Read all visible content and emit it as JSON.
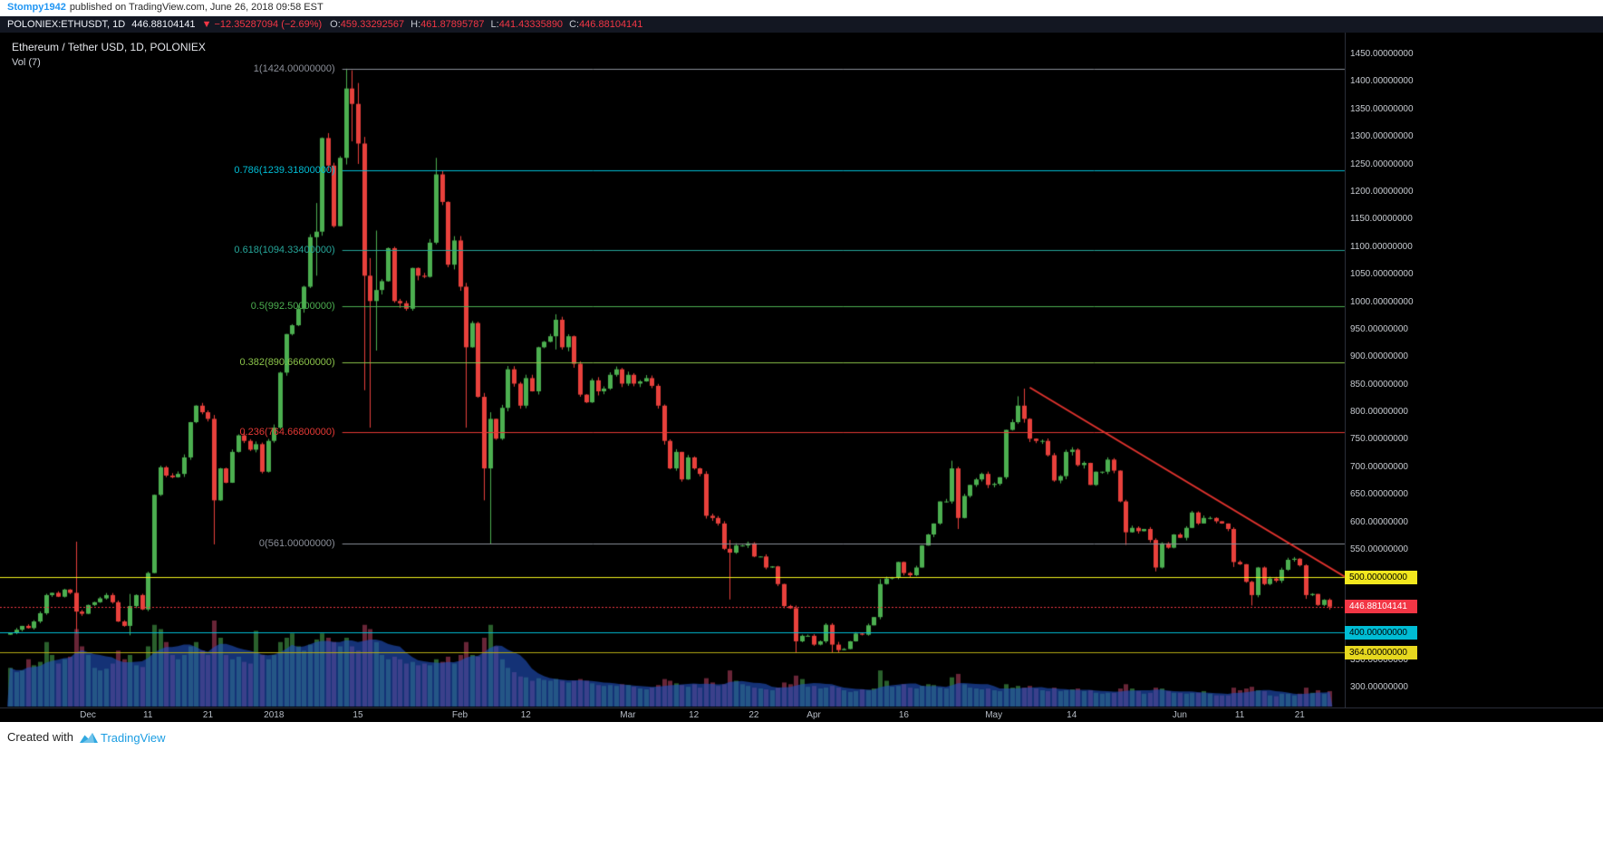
{
  "header": {
    "username": "Stompy1942",
    "published_text": "published on TradingView.com, June 26, 2018 09:58 EST"
  },
  "ticker": {
    "symbol_interval": "POLONIEX:ETHUSDT, 1D",
    "last": "446.88104141",
    "change": "▼ −12.35287094 (−2.69%)",
    "ohlc": [
      {
        "label": "O:",
        "value": "459.33292567"
      },
      {
        "label": "H:",
        "value": "461.87895787"
      },
      {
        "label": "L:",
        "value": "441.43335890"
      },
      {
        "label": "C:",
        "value": "446.88104141"
      }
    ]
  },
  "legend": {
    "title": "Ethereum / Tether USD, 1D, POLONIEX",
    "indicator": "Vol (7)"
  },
  "footer": {
    "created_with": "Created with",
    "brand": "TradingView"
  },
  "chart_data": {
    "type": "candlestick",
    "title": "Ethereum / Tether USD, 1D, POLONIEX",
    "symbol": "POLONIEX:ETHUSDT",
    "interval": "1D",
    "ma_period": 7,
    "colors": {
      "background": "#000000",
      "up": "#4caf50",
      "down": "#e8413c",
      "vol_up": "rgba(76,175,80,0.55)",
      "vol_down": "rgba(190,68,100,0.55)",
      "vol_ma_fill": "rgba(33,81,191,0.62)",
      "axis_border": "#2a2e39"
    },
    "y_axis": {
      "decimals": 8,
      "ticks": [
        1450,
        1400,
        1350,
        1300,
        1250,
        1200,
        1150,
        1100,
        1050,
        1000,
        950,
        900,
        850,
        800,
        750,
        700,
        650,
        600,
        550,
        500,
        450,
        400,
        350,
        300
      ]
    },
    "x_axis": {
      "labels": [
        {
          "text": "Dec",
          "index": 13
        },
        {
          "text": "11",
          "index": 23
        },
        {
          "text": "21",
          "index": 33
        },
        {
          "text": "2018",
          "index": 44
        },
        {
          "text": "15",
          "index": 58
        },
        {
          "text": "Feb",
          "index": 75
        },
        {
          "text": "12",
          "index": 86
        },
        {
          "text": "Mar",
          "index": 103
        },
        {
          "text": "12",
          "index": 114
        },
        {
          "text": "22",
          "index": 124
        },
        {
          "text": "Apr",
          "index": 134
        },
        {
          "text": "16",
          "index": 149
        },
        {
          "text": "May",
          "index": 164
        },
        {
          "text": "14",
          "index": 177
        },
        {
          "text": "Jun",
          "index": 195
        },
        {
          "text": "11",
          "index": 205
        },
        {
          "text": "21",
          "index": 215
        }
      ]
    },
    "candles": {
      "first_open": 396,
      "closes": [
        400,
        405,
        412,
        408,
        420,
        435,
        468,
        472,
        465,
        478,
        472,
        438,
        434,
        450,
        455,
        462,
        468,
        455,
        420,
        412,
        448,
        468,
        442,
        508,
        650,
        700,
        685,
        682,
        688,
        718,
        782,
        812,
        800,
        788,
        640,
        698,
        672,
        728,
        758,
        748,
        732,
        742,
        692,
        748,
        772,
        872,
        942,
        958,
        988,
        1028,
        1118,
        1128,
        1298,
        1248,
        1138,
        1262,
        1388,
        1360,
        1288,
        1048,
        1002,
        1022,
        1038,
        1098,
        1002,
        998,
        988,
        1062,
        1048,
        1046,
        1108,
        1232,
        1182,
        1068,
        1112,
        1028,
        918,
        962,
        828,
        698,
        788,
        752,
        808,
        878,
        852,
        812,
        862,
        838,
        918,
        928,
        938,
        968,
        918,
        938,
        888,
        832,
        818,
        858,
        838,
        843,
        868,
        878,
        852,
        868,
        852,
        856,
        862,
        848,
        812,
        748,
        698,
        728,
        678,
        718,
        698,
        688,
        612,
        608,
        598,
        552,
        545,
        558,
        558,
        562,
        538,
        538,
        518,
        520,
        488,
        448,
        444,
        384,
        394,
        394,
        378,
        384,
        414,
        378,
        368,
        370,
        384,
        398,
        396,
        413,
        428,
        488,
        498,
        500,
        528,
        508,
        504,
        518,
        558,
        578,
        598,
        638,
        638,
        698,
        608,
        648,
        668,
        678,
        688,
        668,
        670,
        682,
        768,
        782,
        812,
        788,
        752,
        748,
        748,
        722,
        676,
        684,
        728,
        732,
        704,
        708,
        668,
        692,
        692,
        714,
        694,
        638,
        582,
        590,
        584,
        588,
        568,
        518,
        562,
        554,
        578,
        572,
        590,
        618,
        598,
        608,
        608,
        602,
        598,
        588,
        528,
        524,
        492,
        468,
        518,
        488,
        498,
        494,
        514,
        532,
        534,
        522,
        468,
        470,
        450,
        459.33,
        446.88
      ],
      "volumes": [
        45,
        40,
        42,
        55,
        48,
        52,
        75,
        60,
        50,
        55,
        58,
        90,
        70,
        60,
        45,
        42,
        44,
        50,
        65,
        55,
        60,
        48,
        46,
        70,
        95,
        90,
        75,
        60,
        55,
        60,
        70,
        75,
        65,
        60,
        100,
        80,
        60,
        55,
        58,
        52,
        50,
        88,
        60,
        55,
        60,
        75,
        80,
        85,
        70,
        65,
        72,
        78,
        85,
        80,
        75,
        70,
        80,
        70,
        65,
        95,
        90,
        75,
        60,
        55,
        58,
        55,
        50,
        52,
        48,
        50,
        48,
        55,
        52,
        58,
        50,
        60,
        75,
        60,
        58,
        80,
        95,
        70,
        55,
        45,
        40,
        35,
        34,
        30,
        33,
        31,
        30,
        32,
        30,
        28,
        30,
        32,
        30,
        27,
        25,
        24,
        25,
        24,
        26,
        25,
        23,
        21,
        20,
        22,
        25,
        32,
        30,
        27,
        25,
        23,
        26,
        22,
        33,
        28,
        24,
        26,
        42,
        30,
        26,
        24,
        22,
        21,
        20,
        19,
        22,
        28,
        26,
        36,
        32,
        23,
        24,
        21,
        22,
        24,
        22,
        19,
        17,
        18,
        20,
        19,
        21,
        42,
        30,
        23,
        24,
        26,
        22,
        21,
        24,
        26,
        25,
        22,
        21,
        34,
        38,
        26,
        22,
        21,
        20,
        21,
        19,
        18,
        26,
        22,
        24,
        22,
        24,
        21,
        19,
        18,
        22,
        18,
        19,
        20,
        21,
        18,
        19,
        16,
        15,
        16,
        16,
        21,
        26,
        21,
        18,
        15,
        16,
        22,
        21,
        18,
        16,
        16,
        15,
        16,
        16,
        18,
        15,
        13,
        13,
        13,
        22,
        19,
        21,
        23,
        19,
        18,
        13,
        12,
        15,
        15,
        13,
        15,
        22,
        16,
        19,
        15,
        18
      ],
      "wick_overrides": {
        "11": [
          565,
          398
        ],
        "20": [
          470,
          395
        ],
        "34": [
          795,
          560
        ],
        "51": [
          1180,
          1048
        ],
        "56": [
          1424,
          1250
        ],
        "57": [
          1421,
          1292
        ],
        "58": [
          1398,
          1251
        ],
        "59": [
          1300,
          840
        ],
        "60": [
          1080,
          772
        ],
        "61": [
          1130,
          912
        ],
        "71": [
          1262,
          1105
        ],
        "76": [
          1035,
          772
        ],
        "79": [
          835,
          640
        ],
        "80": [
          800,
          561
        ],
        "91": [
          978,
          914
        ],
        "120": [
          568,
          460
        ],
        "131": [
          449,
          363
        ],
        "137": [
          417,
          364
        ],
        "138": [
          383,
          363
        ],
        "145": [
          497,
          424
        ],
        "157": [
          712,
          634
        ],
        "158": [
          701,
          588
        ],
        "168": [
          829,
          779
        ],
        "169": [
          843,
          781
        ],
        "186": [
          641,
          559
        ],
        "191": [
          571,
          511
        ],
        "204": [
          591,
          519
        ],
        "207": [
          494,
          449
        ],
        "216": [
          524,
          461
        ],
        "220": [
          461.87895787,
          441.4333589
        ]
      }
    },
    "overlays": {
      "fib": {
        "start_index": 56,
        "levels": [
          {
            "label": "1(1424.00000000)",
            "price": 1424,
            "color": "#8b8f99"
          },
          {
            "label": "0.786(1239.31800000)",
            "price": 1239.318,
            "color": "#00bcd4"
          },
          {
            "label": "0.618(1094.33400000)",
            "price": 1094.334,
            "color": "#26a69a"
          },
          {
            "label": "0.5(992.50000000)",
            "price": 992.5,
            "color": "#4caf50"
          },
          {
            "label": "0.382(890.66600000)",
            "price": 890.666,
            "color": "#8bc34a"
          },
          {
            "label": "0.236(764.66800000)",
            "price": 764.668,
            "color": "#e53935"
          },
          {
            "label": "0(561.00000000)",
            "price": 561,
            "color": "#8b8f99"
          }
        ]
      },
      "rays": [
        {
          "price": 500,
          "line_color": "#f2f21c",
          "label": "500.00000000",
          "label_bg": "#f2e71e",
          "text_color": "#000000"
        },
        {
          "price": 400,
          "line_color": "#00bcd4",
          "label": "400.00000000",
          "label_bg": "#00bcd4",
          "text_color": "#000000"
        },
        {
          "price": 364,
          "line_color": "#b5aa14",
          "label": "364.00000000",
          "label_bg": "#e6d81f",
          "text_color": "#000000"
        }
      ],
      "last_price": {
        "price": 446.88104141,
        "label": "446.88104141",
        "color": "#f23645",
        "text_color": "#ffffff"
      },
      "trendline": {
        "from_index": 170,
        "from_price": 845,
        "to_index": 223,
        "to_price": 498,
        "color": "#e0332e",
        "width": 2
      }
    }
  }
}
